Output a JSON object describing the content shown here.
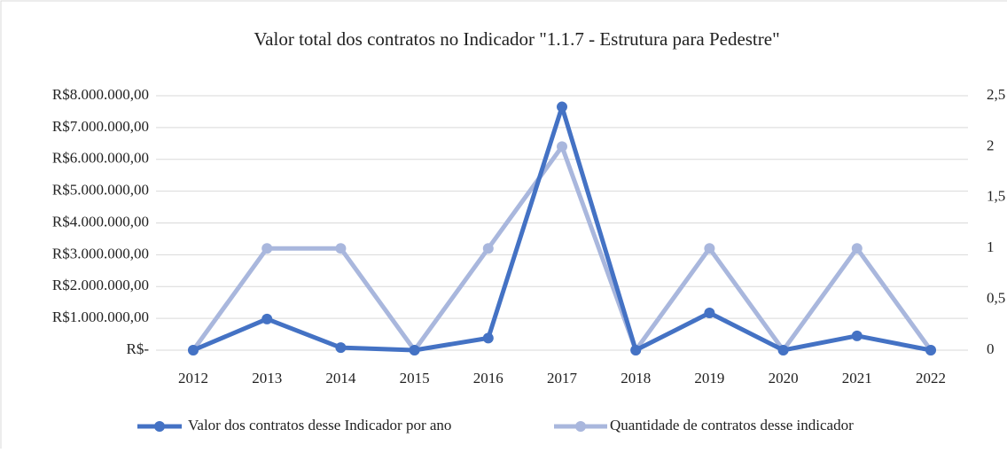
{
  "chart_data": {
    "type": "line",
    "title": "Valor total dos contratos no Indicador \"1.1.7 - Estrutura para Pedestre\"",
    "categories": [
      "2012",
      "2013",
      "2014",
      "2015",
      "2016",
      "2017",
      "2018",
      "2019",
      "2020",
      "2021",
      "2022"
    ],
    "series": [
      {
        "name": "Valor dos contratos desse Indicador por ano",
        "color": "#4472c4",
        "values": [
          0,
          980000,
          80000,
          0,
          380000,
          7650000,
          0,
          1170000,
          0,
          450000,
          0
        ]
      },
      {
        "name": "Quantidade de contratos desse indicador",
        "color": "#a9b7dd",
        "axis": "y2",
        "values": [
          0,
          1,
          1,
          0,
          1,
          2,
          0,
          1,
          0,
          1,
          0
        ]
      }
    ],
    "ylim": [
      0,
      8000000
    ],
    "yticks": [
      {
        "value": 0,
        "label": "R$-"
      },
      {
        "value": 1000000,
        "label": "R$1.000.000,00"
      },
      {
        "value": 2000000,
        "label": "R$2.000.000,00"
      },
      {
        "value": 3000000,
        "label": "R$3.000.000,00"
      },
      {
        "value": 4000000,
        "label": "R$4.000.000,00"
      },
      {
        "value": 5000000,
        "label": "R$5.000.000,00"
      },
      {
        "value": 6000000,
        "label": "R$6.000.000,00"
      },
      {
        "value": 7000000,
        "label": "R$7.000.000,00"
      },
      {
        "value": 8000000,
        "label": "R$8.000.000,00"
      }
    ],
    "y2lim": [
      0,
      2.5
    ],
    "y2ticks": [
      0,
      {
        "value": 0.5,
        "label": "0,5"
      },
      1,
      {
        "value": 1.5,
        "label": "1,5"
      },
      2,
      {
        "value": 2.5,
        "label": "2,5"
      }
    ],
    "grid": true,
    "legend": "bottom"
  }
}
